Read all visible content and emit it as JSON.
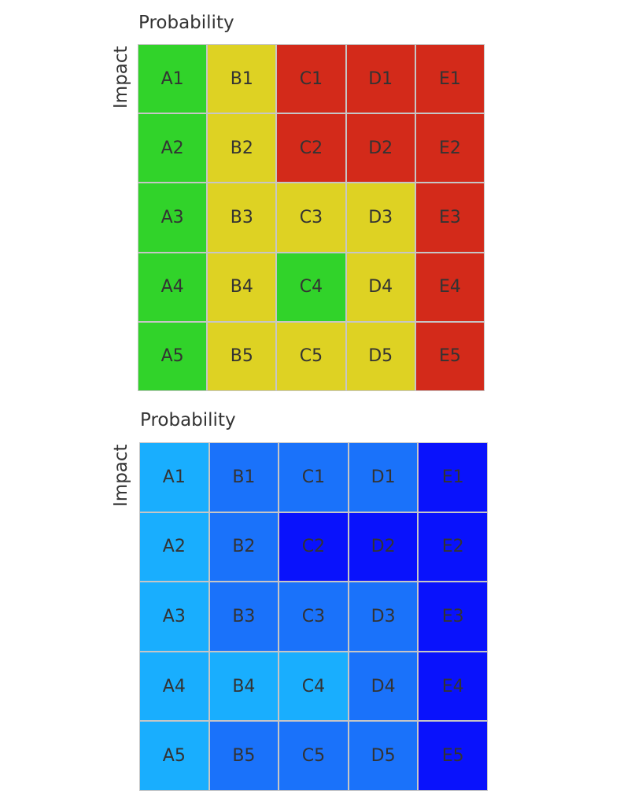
{
  "chart_data": [
    {
      "type": "heatmap",
      "xlabel": "Probability",
      "ylabel": "Impact",
      "columns": [
        "A",
        "B",
        "C",
        "D",
        "E"
      ],
      "rows": [
        "1",
        "2",
        "3",
        "4",
        "5"
      ],
      "palette": {
        "green": "#31d32a",
        "yellow": "#ded223",
        "red": "#d32a1a"
      },
      "cells": [
        [
          "A1",
          "B1",
          "C1",
          "D1",
          "E1"
        ],
        [
          "A2",
          "B2",
          "C2",
          "D2",
          "E2"
        ],
        [
          "A3",
          "B3",
          "C3",
          "D3",
          "E3"
        ],
        [
          "A4",
          "B4",
          "C4",
          "D4",
          "E4"
        ],
        [
          "A5",
          "B5",
          "C5",
          "D5",
          "E5"
        ]
      ],
      "levels": [
        [
          "green",
          "yellow",
          "red",
          "red",
          "red"
        ],
        [
          "green",
          "yellow",
          "red",
          "red",
          "red"
        ],
        [
          "green",
          "yellow",
          "yellow",
          "yellow",
          "red"
        ],
        [
          "green",
          "yellow",
          "green",
          "yellow",
          "red"
        ],
        [
          "green",
          "yellow",
          "yellow",
          "yellow",
          "red"
        ]
      ]
    },
    {
      "type": "heatmap",
      "xlabel": "Probability",
      "ylabel": "Impact",
      "columns": [
        "A",
        "B",
        "C",
        "D",
        "E"
      ],
      "rows": [
        "1",
        "2",
        "3",
        "4",
        "5"
      ],
      "palette": {
        "light": "#19aefe",
        "medium": "#1a72fa",
        "dark": "#0912fc"
      },
      "cells": [
        [
          "A1",
          "B1",
          "C1",
          "D1",
          "E1"
        ],
        [
          "A2",
          "B2",
          "C2",
          "D2",
          "E2"
        ],
        [
          "A3",
          "B3",
          "C3",
          "D3",
          "E3"
        ],
        [
          "A4",
          "B4",
          "C4",
          "D4",
          "E4"
        ],
        [
          "A5",
          "B5",
          "C5",
          "D5",
          "E5"
        ]
      ],
      "levels": [
        [
          "light",
          "medium",
          "medium",
          "medium",
          "dark"
        ],
        [
          "light",
          "medium",
          "dark",
          "dark",
          "dark"
        ],
        [
          "light",
          "medium",
          "medium",
          "medium",
          "dark"
        ],
        [
          "light",
          "light",
          "light",
          "medium",
          "dark"
        ],
        [
          "light",
          "medium",
          "medium",
          "medium",
          "dark"
        ]
      ]
    }
  ]
}
